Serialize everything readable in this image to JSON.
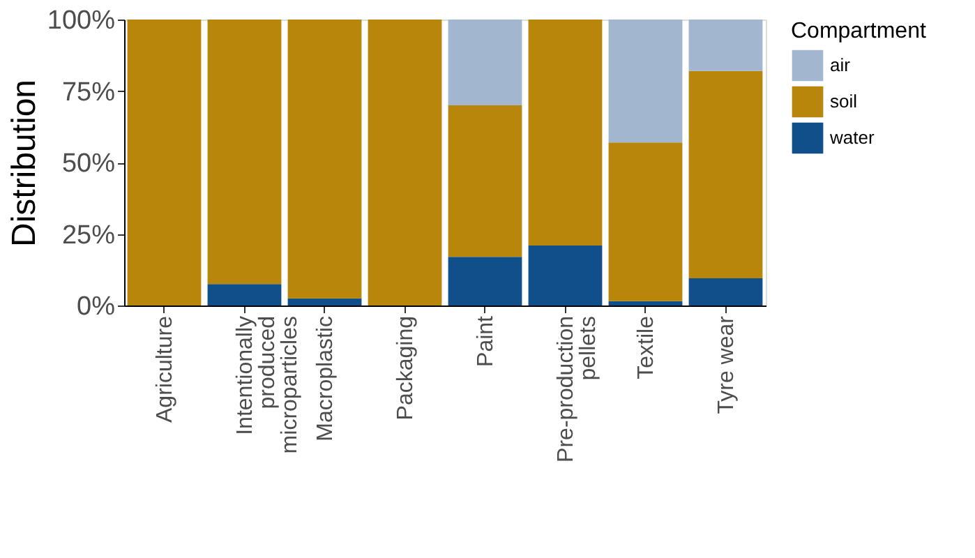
{
  "chart_data": {
    "type": "bar",
    "stacked": true,
    "ylabel": "Distribution",
    "legend_title": "Compartment",
    "legend": "right",
    "grid": false,
    "categories": [
      "Agriculture",
      "Intentionally\nproduced\nmicroparticles",
      "Macroplastic",
      "Packaging",
      "Paint",
      "Pre-production\npellets",
      "Textile",
      "Tyre wear"
    ],
    "series": [
      {
        "name": "water",
        "color": "#114f8b",
        "values": [
          0,
          7.5,
          2.5,
          0,
          17,
          21,
          1.5,
          9.5
        ]
      },
      {
        "name": "soil",
        "color": "#b8860b",
        "values": [
          100,
          92.5,
          97.5,
          100,
          53,
          79,
          55.5,
          72.5
        ]
      },
      {
        "name": "air",
        "color": "#a2b6cf",
        "values": [
          0,
          0,
          0,
          0,
          30,
          0,
          43,
          18
        ]
      }
    ],
    "ylim": [
      0,
      100
    ],
    "yticks": [
      {
        "value": 0,
        "label": "0%"
      },
      {
        "value": 25,
        "label": "25%"
      },
      {
        "value": 50,
        "label": "50%"
      },
      {
        "value": 75,
        "label": "75%"
      },
      {
        "value": 100,
        "label": "100%"
      }
    ]
  }
}
